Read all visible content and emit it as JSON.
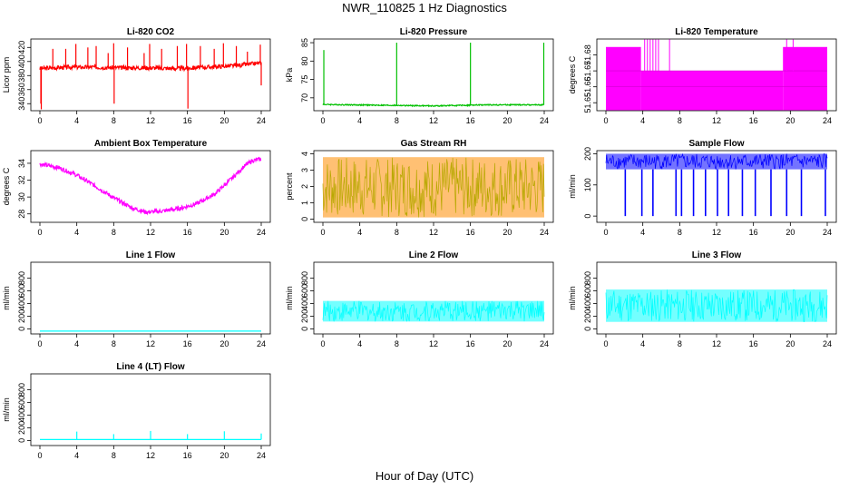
{
  "page": {
    "title": "NWR_110825  1 Hz Diagnostics",
    "x_axis_title": "Hour of Day (UTC)"
  },
  "chart_data": [
    {
      "type": "line",
      "title": "Li-820 CO2",
      "ylabel": "Licor ppm",
      "color": "#ff0000",
      "xlim": [
        0,
        24
      ],
      "xticks": [
        0,
        4,
        8,
        12,
        16,
        20,
        24
      ],
      "ylim": [
        330,
        432
      ],
      "yticks": [
        340,
        360,
        380,
        400,
        420
      ],
      "baseline": {
        "x": [
          0,
          3,
          6,
          9,
          12,
          15,
          18,
          21,
          24
        ],
        "y": [
          390,
          392,
          392,
          391,
          391,
          390,
          392,
          394,
          398
        ]
      },
      "noise": 3,
      "spikes": [
        {
          "x": 0.1,
          "y": 340
        },
        {
          "x": 0.15,
          "y": 332
        },
        {
          "x": 1.4,
          "y": 418
        },
        {
          "x": 2.8,
          "y": 418
        },
        {
          "x": 3.9,
          "y": 425
        },
        {
          "x": 5.2,
          "y": 420
        },
        {
          "x": 6.1,
          "y": 422
        },
        {
          "x": 7.4,
          "y": 412
        },
        {
          "x": 8.0,
          "y": 426
        },
        {
          "x": 8.05,
          "y": 340
        },
        {
          "x": 9.5,
          "y": 420
        },
        {
          "x": 11.3,
          "y": 412
        },
        {
          "x": 11.9,
          "y": 425
        },
        {
          "x": 13.2,
          "y": 418
        },
        {
          "x": 14.9,
          "y": 422
        },
        {
          "x": 15.9,
          "y": 425
        },
        {
          "x": 16.05,
          "y": 333
        },
        {
          "x": 17.4,
          "y": 422
        },
        {
          "x": 18.9,
          "y": 418
        },
        {
          "x": 19.9,
          "y": 426
        },
        {
          "x": 21.3,
          "y": 422
        },
        {
          "x": 22.5,
          "y": 414
        },
        {
          "x": 23.9,
          "y": 424
        },
        {
          "x": 24.0,
          "y": 366
        }
      ]
    },
    {
      "type": "line",
      "title": "Li-820 Pressure",
      "ylabel": "kPa",
      "color": "#00c000",
      "xlim": [
        0,
        24
      ],
      "xticks": [
        0,
        4,
        8,
        12,
        16,
        20,
        24
      ],
      "ylim": [
        66.5,
        86
      ],
      "yticks": [
        70,
        75,
        80,
        85
      ],
      "baseline": {
        "x": [
          0,
          6,
          12,
          18,
          24
        ],
        "y": [
          68.2,
          68.0,
          67.8,
          68.1,
          68.1
        ]
      },
      "noise": 0.15,
      "spikes": [
        {
          "x": 0.1,
          "y": 83
        },
        {
          "x": 8.0,
          "y": 85
        },
        {
          "x": 16.0,
          "y": 85
        },
        {
          "x": 23.95,
          "y": 85
        }
      ]
    },
    {
      "type": "line",
      "title": "Li-820 Temperature",
      "ylabel": "degrees C",
      "color": "#ff00ff",
      "xlim": [
        0,
        24
      ],
      "xticks": [
        0,
        4,
        8,
        12,
        16,
        20,
        24
      ],
      "ylim": [
        51.645,
        51.69
      ],
      "yticks": [
        51.65,
        51.66,
        51.67,
        51.68
      ],
      "levels": [
        51.66,
        51.67
      ],
      "dense_ranges": [
        {
          "start": 0,
          "end": 3.8,
          "low": 51.645,
          "high": 51.685
        },
        {
          "start": 3.8,
          "end": 19.2,
          "low": 51.645,
          "high": 51.67
        },
        {
          "start": 19.2,
          "end": 24,
          "low": 51.645,
          "high": 51.685
        }
      ],
      "upward_spikes": [
        4.2,
        4.5,
        4.8,
        5.1,
        5.4,
        5.7,
        6.9,
        19.6,
        20.3
      ]
    },
    {
      "type": "line",
      "title": "Ambient Box Temperature",
      "ylabel": "degrees C",
      "color": "#ff00ff",
      "xlim": [
        0,
        24
      ],
      "xticks": [
        0,
        4,
        8,
        12,
        16,
        20,
        24
      ],
      "ylim": [
        27,
        35.5
      ],
      "yticks": [
        28,
        30,
        32,
        34
      ],
      "baseline": {
        "x": [
          0,
          2,
          4,
          6,
          8,
          10,
          11.5,
          13,
          15,
          17,
          19,
          21,
          22,
          23,
          24
        ],
        "y": [
          33.9,
          33.5,
          32.6,
          31.3,
          29.9,
          28.7,
          28.2,
          28.3,
          28.6,
          29.2,
          30.4,
          32.4,
          33.5,
          34.3,
          34.5
        ]
      },
      "noise": 0.25
    },
    {
      "type": "line",
      "title": "Gas Stream RH",
      "ylabel": "percent",
      "color": "#ff8c00",
      "overlay_color": "#b8a800",
      "xlim": [
        0,
        24
      ],
      "xticks": [
        0,
        4,
        8,
        12,
        16,
        20,
        24
      ],
      "ylim": [
        -0.2,
        4.2
      ],
      "yticks": [
        0,
        1,
        2,
        3,
        4
      ],
      "band": {
        "low": 0.1,
        "high": 3.8
      }
    },
    {
      "type": "line",
      "title": "Sample Flow",
      "ylabel": "ml/min",
      "color": "#0000ff",
      "xlim": [
        0,
        24
      ],
      "xticks": [
        0,
        4,
        8,
        12,
        16,
        20,
        24
      ],
      "ylim": [
        -20,
        210
      ],
      "yticks": [
        0,
        100,
        200
      ],
      "band": {
        "low": 150,
        "high": 200
      },
      "drops": [
        2.1,
        3.9,
        5.1,
        7.6,
        8.2,
        9.5,
        10.8,
        12.1,
        13.3,
        14.8,
        16.2,
        17.9,
        19.6,
        21.2,
        23.8
      ]
    },
    {
      "type": "line",
      "title": "Line 1 Flow",
      "ylabel": "ml/min",
      "color": "#00ffff",
      "xlim": [
        0,
        24
      ],
      "xticks": [
        0,
        4,
        8,
        12,
        16,
        20,
        24
      ],
      "ylim": [
        -80,
        1050
      ],
      "yticks": [
        0,
        200,
        400,
        600,
        800
      ],
      "baseline": {
        "x": [
          0,
          24
        ],
        "y": [
          -35,
          -35
        ]
      },
      "noise": 0
    },
    {
      "type": "line",
      "title": "Line 2 Flow",
      "ylabel": "ml/min",
      "color": "#00ffff",
      "xlim": [
        0,
        24
      ],
      "xticks": [
        0,
        4,
        8,
        12,
        16,
        20,
        24
      ],
      "ylim": [
        -80,
        1050
      ],
      "yticks": [
        0,
        200,
        400,
        600,
        800
      ],
      "band": {
        "low": 115,
        "high": 440
      }
    },
    {
      "type": "line",
      "title": "Line 3 Flow",
      "ylabel": "ml/min",
      "color": "#00ffff",
      "xlim": [
        0,
        24
      ],
      "xticks": [
        0,
        4,
        8,
        12,
        16,
        20,
        24
      ],
      "ylim": [
        -80,
        1050
      ],
      "yticks": [
        0,
        200,
        400,
        600,
        800
      ],
      "band": {
        "low": 110,
        "high": 620
      }
    },
    {
      "type": "line",
      "title": "Line 4 (LT) Flow",
      "ylabel": "ml/min",
      "color": "#00ffff",
      "xlim": [
        0,
        24
      ],
      "xticks": [
        0,
        4,
        8,
        12,
        16,
        20,
        24
      ],
      "ylim": [
        -80,
        1050
      ],
      "yticks": [
        0,
        200,
        400,
        600,
        800
      ],
      "baseline": {
        "x": [
          0,
          24
        ],
        "y": [
          15,
          15
        ]
      },
      "noise": 0,
      "spikes": [
        {
          "x": 4.0,
          "y": 140
        },
        {
          "x": 8.0,
          "y": 100
        },
        {
          "x": 12.0,
          "y": 150
        },
        {
          "x": 16.0,
          "y": 100
        },
        {
          "x": 20.0,
          "y": 145
        },
        {
          "x": 24.0,
          "y": 110
        }
      ]
    }
  ]
}
